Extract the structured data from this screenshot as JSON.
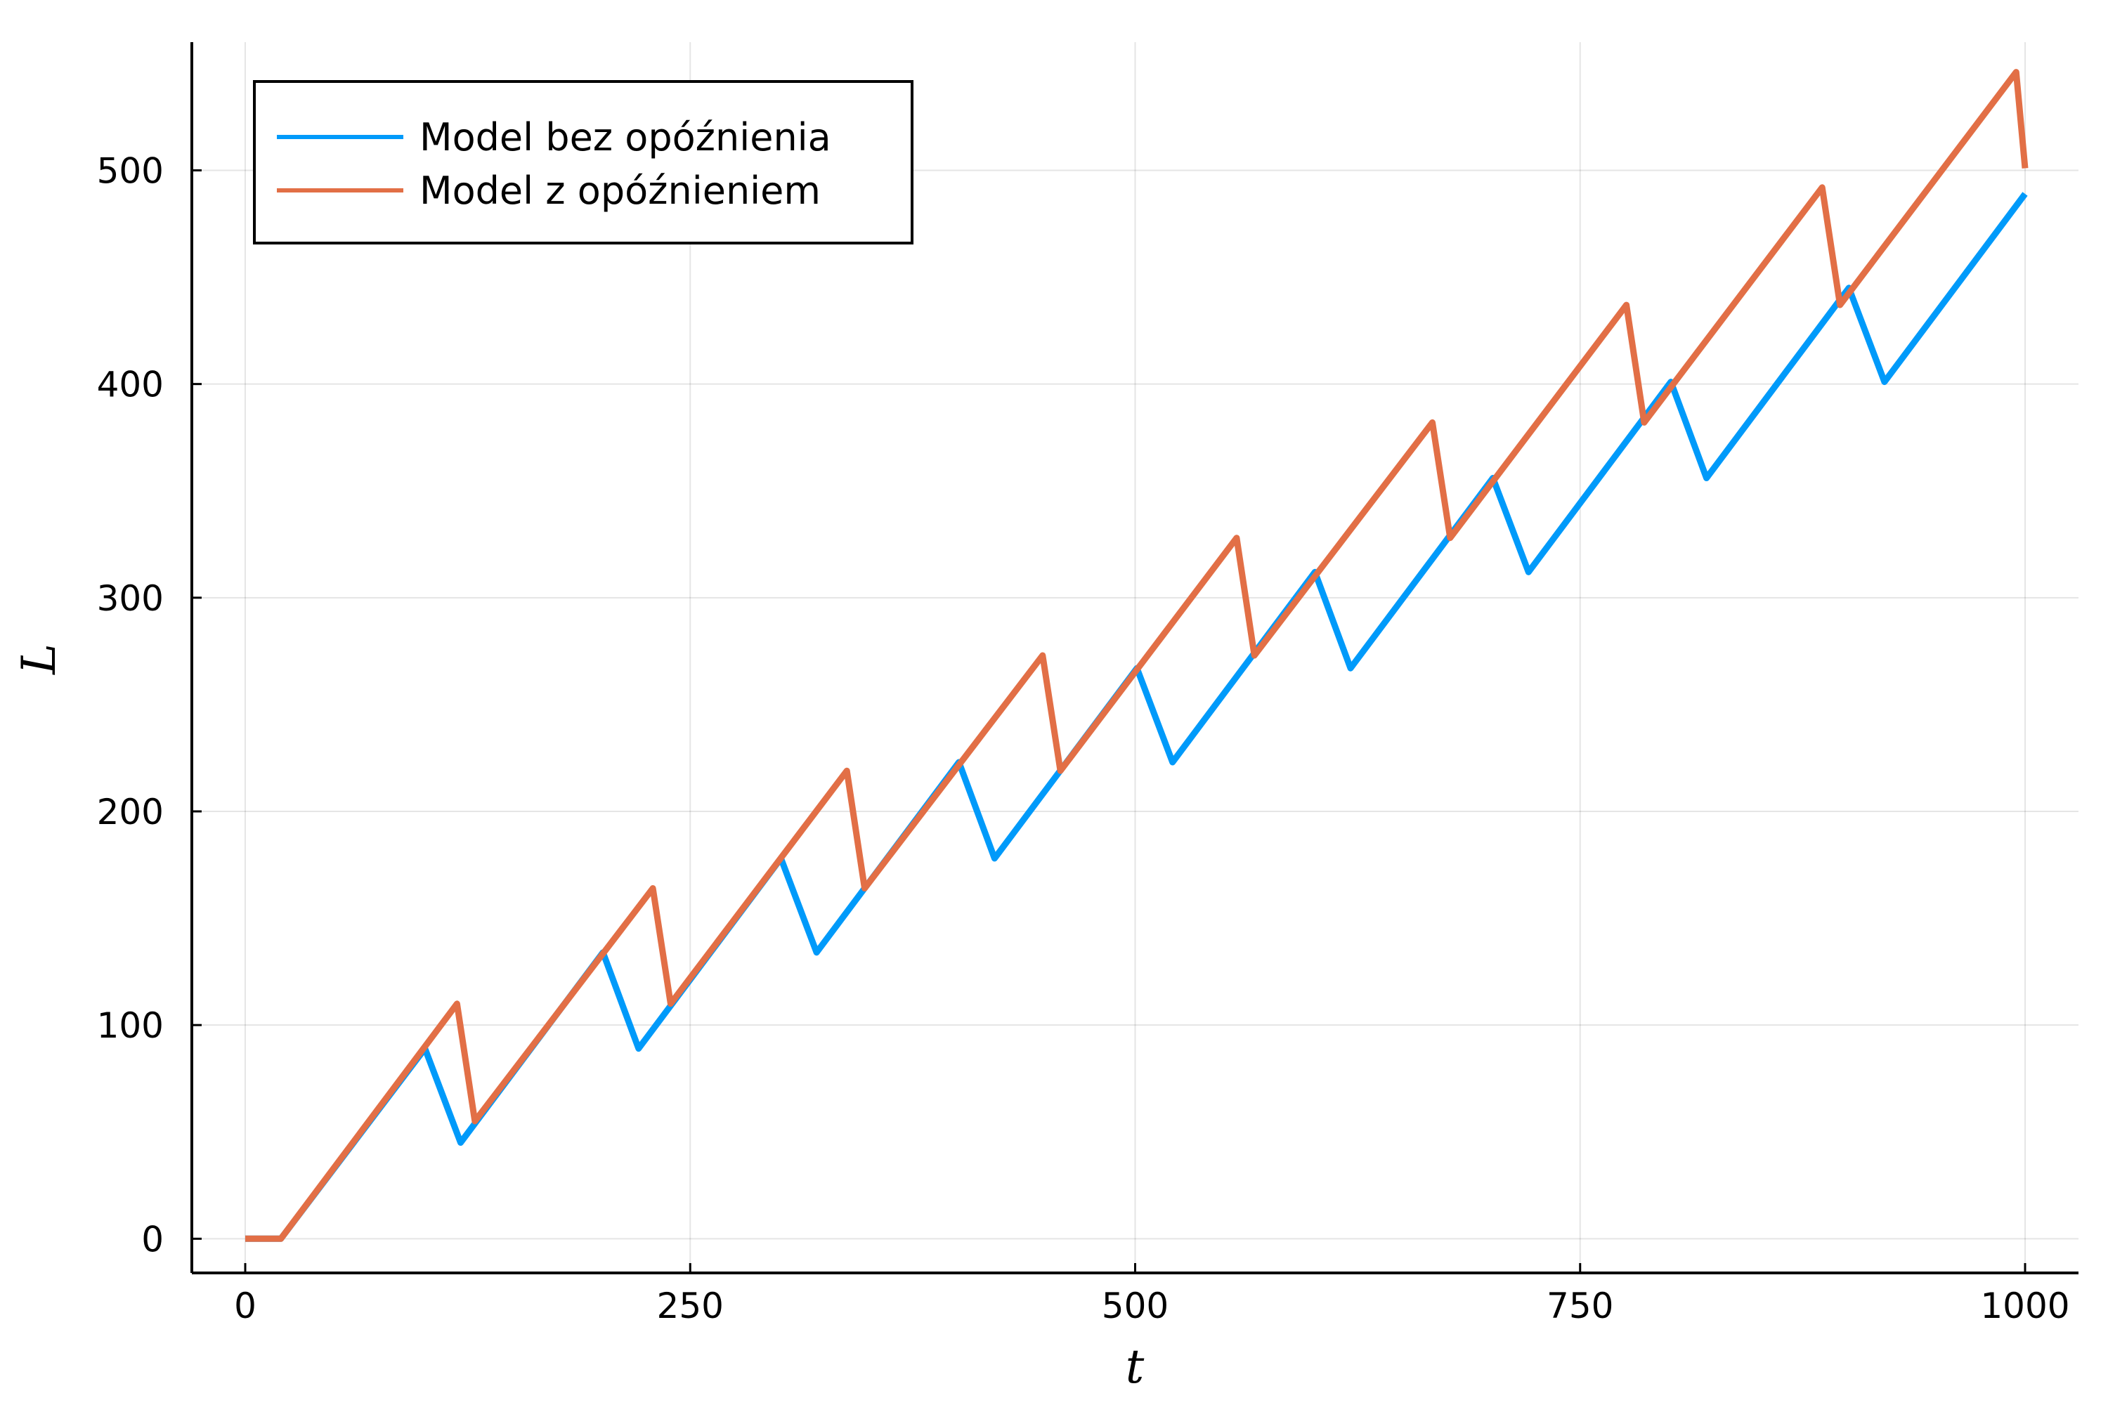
{
  "chart_data": {
    "type": "line",
    "title": "",
    "xlabel": "t",
    "ylabel": "L",
    "xlim": [
      -30,
      1030
    ],
    "ylim": [
      -16,
      560
    ],
    "xticks": [
      0,
      250,
      500,
      750,
      1000
    ],
    "xtick_labels": [
      "0",
      "250",
      "500",
      "750",
      "1000"
    ],
    "yticks": [
      0,
      100,
      200,
      300,
      400,
      500
    ],
    "ytick_labels": [
      "0",
      "100",
      "200",
      "300",
      "400",
      "500"
    ],
    "grid": true,
    "legend_position": "top-left",
    "series": [
      {
        "name": "Model bez opóźnienia",
        "color": "#009AFA",
        "points": [
          [
            0,
            0
          ],
          [
            20,
            0
          ],
          [
            101,
            89
          ],
          [
            121,
            45
          ],
          [
            201,
            134
          ],
          [
            221,
            89
          ],
          [
            301,
            178
          ],
          [
            321,
            134
          ],
          [
            401,
            223
          ],
          [
            421,
            178
          ],
          [
            501,
            267
          ],
          [
            521,
            223
          ],
          [
            601,
            312
          ],
          [
            621,
            267
          ],
          [
            701,
            356
          ],
          [
            721,
            312
          ],
          [
            801,
            401
          ],
          [
            821,
            356
          ],
          [
            901,
            445
          ],
          [
            921,
            401
          ],
          [
            1000,
            489
          ]
        ]
      },
      {
        "name": "Model z opóźnieniem",
        "color": "#E26F46",
        "points": [
          [
            0,
            0
          ],
          [
            20,
            0
          ],
          [
            119,
            110
          ],
          [
            129,
            55
          ],
          [
            229,
            164
          ],
          [
            239,
            110
          ],
          [
            338,
            219
          ],
          [
            348,
            164
          ],
          [
            448,
            273
          ],
          [
            458,
            219
          ],
          [
            557,
            328
          ],
          [
            567,
            273
          ],
          [
            667,
            382
          ],
          [
            677,
            328
          ],
          [
            776,
            437
          ],
          [
            786,
            382
          ],
          [
            886,
            492
          ],
          [
            896,
            437
          ],
          [
            995,
            546
          ],
          [
            1000,
            501
          ]
        ]
      }
    ]
  }
}
